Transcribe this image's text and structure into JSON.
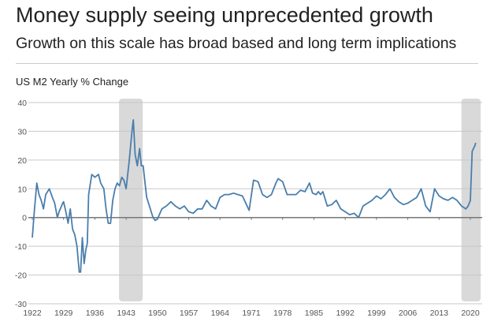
{
  "header": {
    "title": "Money supply seeing unprecedented growth",
    "subtitle": "Growth on this scale has broad based and long term implications"
  },
  "chart_data": {
    "type": "line",
    "title": "US M2 Yearly % Change",
    "xlabel": "",
    "ylabel": "",
    "xlim": [
      1922,
      2022
    ],
    "ylim": [
      -30,
      40
    ],
    "yticks": [
      40,
      30,
      20,
      10,
      0,
      -10,
      -20,
      -30
    ],
    "xticks": [
      1922,
      1929,
      1936,
      1943,
      1950,
      1957,
      1964,
      1971,
      1978,
      1985,
      1992,
      1999,
      2006,
      2013,
      2020
    ],
    "grid": "horizontal",
    "line_color": "#4a7eac",
    "shaded_periods": [
      {
        "start": 1941.4,
        "end": 1946.7
      },
      {
        "start": 2018,
        "end": 2022.3
      }
    ],
    "shade_color": "#d9d9d9",
    "series": [
      {
        "x": [
          1922,
          1922.5,
          1923,
          1923.5,
          1924,
          1924.5,
          1925,
          1925.8,
          1926.5,
          1927,
          1927.6,
          1928,
          1928.8,
          1929,
          1929.5,
          1930,
          1930.5,
          1931,
          1931.5,
          1932,
          1932.5,
          1932.8,
          1933.2,
          1933.6,
          1934,
          1934.3,
          1934.6,
          1935.3,
          1936,
          1936.8,
          1937.3,
          1938,
          1938.5,
          1939,
          1939.5,
          1940,
          1940.5,
          1941,
          1941.5,
          1942,
          1942.5,
          1943,
          1943.7,
          1944.3,
          1944.6,
          1945,
          1945.5,
          1946,
          1946.4,
          1946.8,
          1947.3,
          1947.6,
          1948,
          1949,
          1949.5,
          1950,
          1951,
          1952,
          1953,
          1954,
          1955,
          1956,
          1957,
          1958,
          1959,
          1960,
          1961,
          1962,
          1963,
          1964,
          1965,
          1966,
          1967,
          1968,
          1969,
          1970.5,
          1971.5,
          1972.5,
          1973.5,
          1974.5,
          1975.5,
          1976.5,
          1977,
          1978,
          1979,
          1980,
          1981,
          1982,
          1983,
          1984,
          1984.7,
          1985.5,
          1986,
          1986.5,
          1987,
          1988,
          1989,
          1990,
          1991,
          1992,
          1993,
          1994,
          1995,
          1996,
          1997,
          1998,
          1999,
          2000,
          2001,
          2002,
          2003,
          2004,
          2005,
          2006,
          2007,
          2008,
          2009,
          2010,
          2011,
          2012,
          2013,
          2014,
          2015,
          2016,
          2017,
          2018,
          2019,
          2019.5,
          2020,
          2020.4,
          2021,
          2021.2
        ],
        "values": [
          -7,
          3,
          12,
          8,
          6,
          3,
          8,
          10,
          7,
          5,
          0,
          2,
          5,
          5.5,
          2,
          -2,
          3,
          -4,
          -6,
          -10,
          -19,
          -19,
          -7,
          -16,
          -11,
          -9,
          8,
          15,
          14,
          15,
          12,
          10,
          3,
          -2,
          -2,
          6,
          10,
          12,
          11,
          14,
          13,
          10,
          20,
          30,
          34,
          22,
          18,
          24,
          18,
          18,
          11,
          7,
          5,
          0,
          -1,
          -0.5,
          3,
          4,
          5.5,
          4,
          3,
          4,
          2,
          1.5,
          3,
          3,
          6,
          4,
          3,
          7,
          8,
          8,
          8.5,
          8,
          7.5,
          2.5,
          13,
          12.5,
          8,
          7,
          8,
          12,
          13.5,
          12.5,
          8,
          8,
          8,
          9.5,
          9,
          12,
          8.5,
          8,
          9,
          8,
          9,
          4,
          4.5,
          6,
          3,
          2,
          1,
          1.5,
          0,
          4,
          5,
          6,
          7.5,
          6.5,
          8,
          10,
          7,
          5.5,
          4.5,
          5,
          6,
          7,
          10,
          4,
          2,
          10,
          7.5,
          6.5,
          6,
          7,
          6,
          4,
          3,
          4,
          6,
          23,
          25,
          26
        ]
      }
    ]
  }
}
